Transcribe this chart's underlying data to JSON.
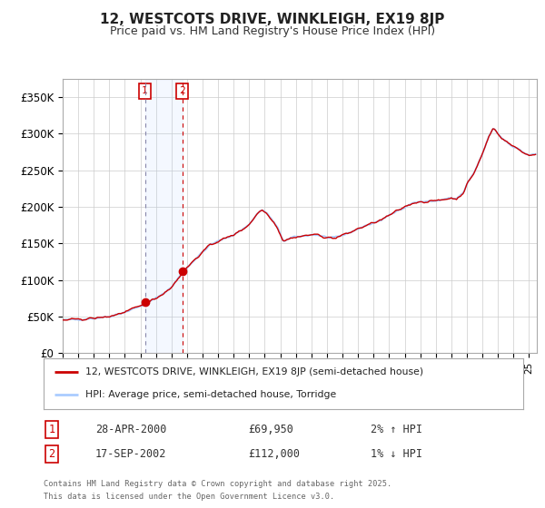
{
  "title": "12, WESTCOTS DRIVE, WINKLEIGH, EX19 8JP",
  "subtitle": "Price paid vs. HM Land Registry's House Price Index (HPI)",
  "background_color": "#ffffff",
  "plot_bg_color": "#ffffff",
  "grid_color": "#cccccc",
  "line1_color": "#cc0000",
  "line2_color": "#aaccff",
  "line1_label": "12, WESTCOTS DRIVE, WINKLEIGH, EX19 8JP (semi-detached house)",
  "line2_label": "HPI: Average price, semi-detached house, Torridge",
  "purchase1_price_str": "£69,950",
  "purchase1_hpi": "2% ↑ HPI",
  "purchase1_label": "28-APR-2000",
  "purchase2_price_str": "£112,000",
  "purchase2_hpi": "1% ↓ HPI",
  "purchase2_label": "17-SEP-2002",
  "ylim": [
    0,
    375000
  ],
  "yticks": [
    0,
    50000,
    100000,
    150000,
    200000,
    250000,
    300000,
    350000
  ],
  "ytick_labels": [
    "£0",
    "£50K",
    "£100K",
    "£150K",
    "£200K",
    "£250K",
    "£300K",
    "£350K"
  ],
  "footer_line1": "Contains HM Land Registry data © Crown copyright and database right 2025.",
  "footer_line2": "This data is licensed under the Open Government Licence v3.0.",
  "purchase1_x": 2000.29,
  "purchase1_y": 69950,
  "purchase2_x": 2002.71,
  "purchase2_y": 112000,
  "xlim_start": 1995.0,
  "xlim_end": 2025.5
}
